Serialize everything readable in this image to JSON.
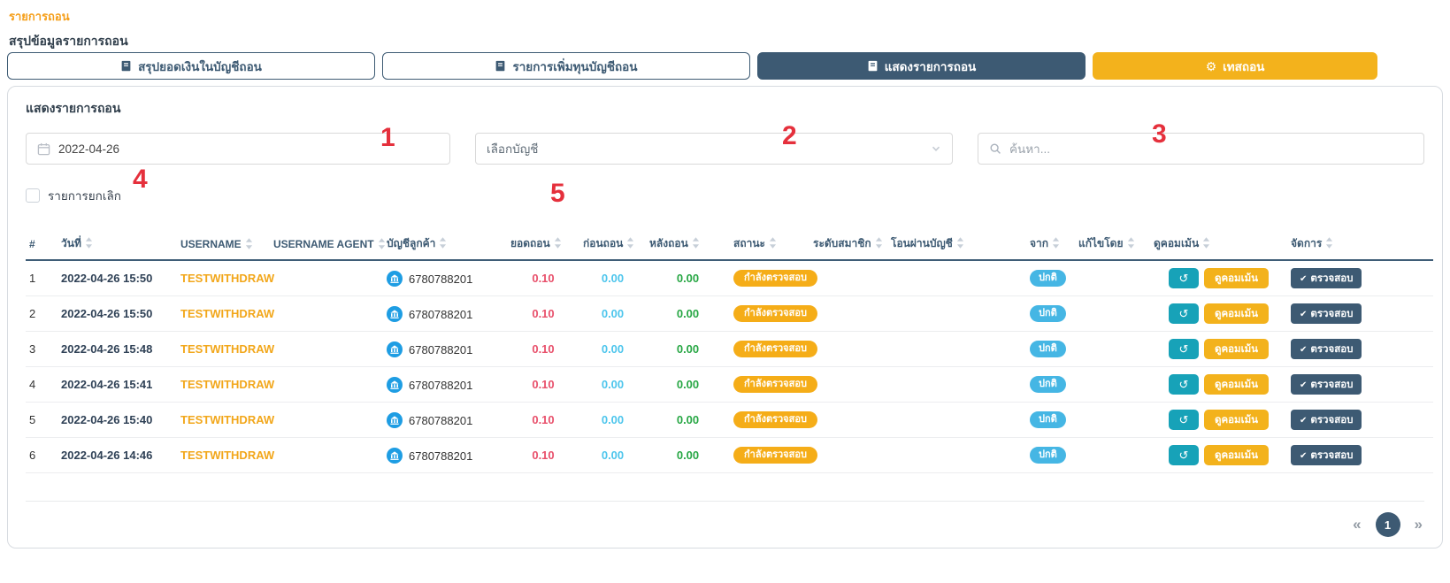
{
  "page": {
    "breadcrumb": "รายการถอน",
    "section_title": "สรุปข้อมูลรายการถอน"
  },
  "tabs": [
    {
      "label": "สรุปยอดเงินในบัญชีถอน",
      "icon": "book-icon",
      "active": false
    },
    {
      "label": "รายการเพิ่มทุนบัญชีถอน",
      "icon": "book-icon",
      "active": false
    },
    {
      "label": "แสดงรายการถอน",
      "icon": "book-icon",
      "active": true
    },
    {
      "label": "เทสถอน",
      "icon": "gear-icon",
      "active": false
    }
  ],
  "panel": {
    "title": "แสดงรายการถอน",
    "date_filter": {
      "value": "2022-04-26",
      "icon": "calendar-icon"
    },
    "account_select": {
      "placeholder": "เลือกบัญชี",
      "icon": "chevron-down-icon"
    },
    "search": {
      "placeholder": "ค้นหา...",
      "icon": "search-icon"
    },
    "cancel_checkbox": {
      "label": "รายการยกเลิก",
      "checked": false
    }
  },
  "annotations": [
    "1",
    "2",
    "3",
    "4",
    "5"
  ],
  "table": {
    "columns": [
      {
        "label": "#",
        "sortable": false
      },
      {
        "label": "วันที่",
        "sortable": true
      },
      {
        "label": "USERNAME",
        "sortable": true
      },
      {
        "label": "USERNAME AGENT",
        "sortable": true
      },
      {
        "label": "บัญชีลูกค้า",
        "sortable": true
      },
      {
        "label": "ยอดถอน",
        "sortable": true
      },
      {
        "label": "ก่อนถอน",
        "sortable": true
      },
      {
        "label": "หลังถอน",
        "sortable": true
      },
      {
        "label": "สถานะ",
        "sortable": true
      },
      {
        "label": "ระดับสมาชิก",
        "sortable": true
      },
      {
        "label": "โอนผ่านบัญชี",
        "sortable": true
      },
      {
        "label": "จาก",
        "sortable": true
      },
      {
        "label": "แก้ไขโดย",
        "sortable": true
      },
      {
        "label": "ดูคอมเม้น",
        "sortable": true
      },
      {
        "label": "จัดการ",
        "sortable": true
      }
    ],
    "actions": {
      "history_icon": "↺",
      "comment": "ดูคอมเม้น",
      "manage_icon": "✔",
      "manage": "ตรวจสอบ"
    },
    "rows": [
      {
        "index": "1",
        "datetime": "2022-04-26 15:50",
        "username": "TESTWITHDRAW",
        "username_agent": "",
        "customer_account": "6780788201",
        "withdraw": "0.10",
        "before": "0.00",
        "after": "0.00",
        "status": "กำลังตรวจสอบ",
        "member_level": "",
        "transfer_account": "",
        "from": "ปกติ",
        "edited_by": ""
      },
      {
        "index": "2",
        "datetime": "2022-04-26 15:50",
        "username": "TESTWITHDRAW",
        "username_agent": "",
        "customer_account": "6780788201",
        "withdraw": "0.10",
        "before": "0.00",
        "after": "0.00",
        "status": "กำลังตรวจสอบ",
        "member_level": "",
        "transfer_account": "",
        "from": "ปกติ",
        "edited_by": ""
      },
      {
        "index": "3",
        "datetime": "2022-04-26 15:48",
        "username": "TESTWITHDRAW",
        "username_agent": "",
        "customer_account": "6780788201",
        "withdraw": "0.10",
        "before": "0.00",
        "after": "0.00",
        "status": "กำลังตรวจสอบ",
        "member_level": "",
        "transfer_account": "",
        "from": "ปกติ",
        "edited_by": ""
      },
      {
        "index": "4",
        "datetime": "2022-04-26 15:41",
        "username": "TESTWITHDRAW",
        "username_agent": "",
        "customer_account": "6780788201",
        "withdraw": "0.10",
        "before": "0.00",
        "after": "0.00",
        "status": "กำลังตรวจสอบ",
        "member_level": "",
        "transfer_account": "",
        "from": "ปกติ",
        "edited_by": ""
      },
      {
        "index": "5",
        "datetime": "2022-04-26 15:40",
        "username": "TESTWITHDRAW",
        "username_agent": "",
        "customer_account": "6780788201",
        "withdraw": "0.10",
        "before": "0.00",
        "after": "0.00",
        "status": "กำลังตรวจสอบ",
        "member_level": "",
        "transfer_account": "",
        "from": "ปกติ",
        "edited_by": ""
      },
      {
        "index": "6",
        "datetime": "2022-04-26 14:46",
        "username": "TESTWITHDRAW",
        "username_agent": "",
        "customer_account": "6780788201",
        "withdraw": "0.10",
        "before": "0.00",
        "after": "0.00",
        "status": "กำลังตรวจสอบ",
        "member_level": "",
        "transfer_account": "",
        "from": "ปกติ",
        "edited_by": ""
      }
    ]
  },
  "pagination": {
    "prev": "«",
    "current": "1",
    "next": "»"
  },
  "colors": {
    "slate": "#3d5a73",
    "amber": "#f3b21c",
    "status_badge": "#f5ad18",
    "from_badge": "#45b6e4",
    "amount_withdraw": "#e8506b",
    "amount_before": "#4cc5ec",
    "amount_after": "#28a745",
    "link_orange": "#f59f1b",
    "username_orange": "#f2a71b",
    "history_teal": "#17a2b8",
    "bank_icon_blue": "#1e9de3",
    "annotation_red": "#e5303c"
  }
}
